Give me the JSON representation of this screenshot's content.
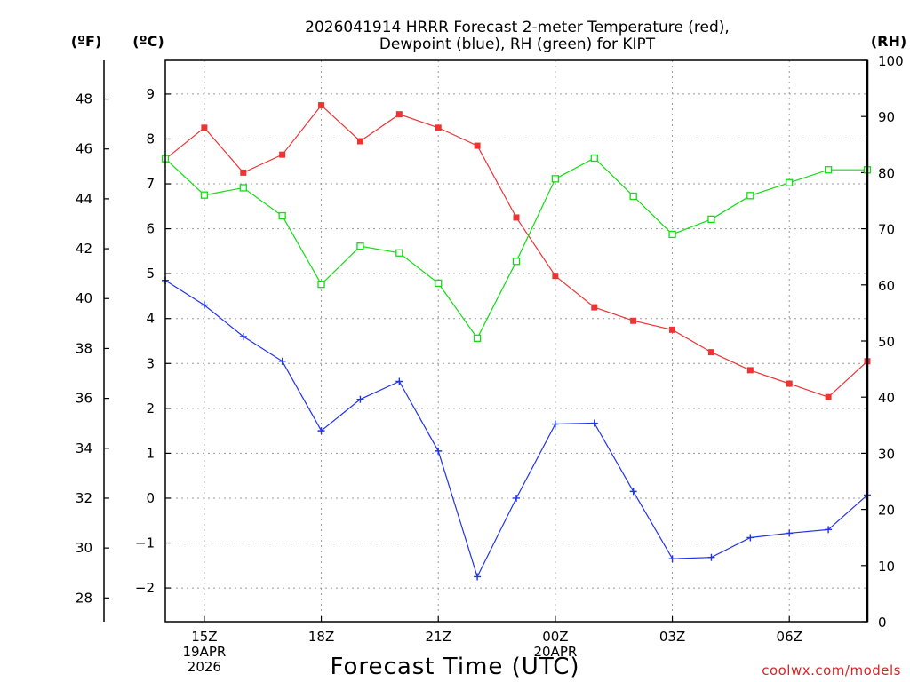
{
  "title": {
    "line1": "2026041914 HRRR Forecast 2-meter Temperature (red),",
    "line2": "Dewpoint (blue), RH (green) for KIPT"
  },
  "units": {
    "fahrenheit": "(ºF)",
    "celsius": "(ºC)",
    "rh": "(RH)"
  },
  "credit": "coolwx.com/models",
  "chart_data": {
    "type": "line",
    "title": "2026041914 HRRR Forecast 2-meter Temperature (red), Dewpoint (blue), RH (green) for KIPT",
    "xlabel": "Forecast Time (UTC)",
    "x": [
      14,
      15,
      16,
      17,
      18,
      19,
      20,
      21,
      22,
      23,
      24,
      25,
      26,
      27,
      28,
      29,
      30,
      31,
      32
    ],
    "x_unit": "UTC hours since 19APR2026 00Z",
    "xlim": [
      14,
      32
    ],
    "xticks": [
      {
        "x": 15,
        "lines": [
          "15Z",
          "19APR",
          "2026"
        ]
      },
      {
        "x": 18,
        "lines": [
          "18Z"
        ]
      },
      {
        "x": 21,
        "lines": [
          "21Z"
        ]
      },
      {
        "x": 24,
        "lines": [
          "00Z",
          "20APR"
        ]
      },
      {
        "x": 27,
        "lines": [
          "03Z"
        ]
      },
      {
        "x": 30,
        "lines": [
          "06Z"
        ]
      }
    ],
    "left_axis_c": {
      "label": "(ºC)",
      "ylim": [
        -2.75,
        9.75
      ],
      "ticks": [
        9,
        8,
        7,
        6,
        5,
        4,
        3,
        2,
        1,
        0,
        -1,
        -2
      ]
    },
    "left_axis_f": {
      "label": "(ºF)",
      "ticks": [
        48,
        46,
        44,
        42,
        40,
        38,
        36,
        34,
        32,
        30,
        28
      ]
    },
    "right_axis_rh": {
      "label": "(RH)",
      "ylim": [
        0,
        100
      ],
      "ticks": [
        100,
        90,
        80,
        70,
        60,
        50,
        40,
        30,
        20,
        10,
        0
      ]
    },
    "grid": true,
    "series": [
      {
        "name": "Temperature",
        "unit": "C",
        "axis": "celsius",
        "color": "#ee3333",
        "marker": "filled-square",
        "values": [
          7.55,
          8.25,
          7.25,
          7.65,
          8.75,
          7.95,
          8.55,
          8.25,
          7.85,
          6.25,
          4.95,
          4.25,
          3.95,
          3.75,
          3.25,
          2.85,
          2.55,
          2.25,
          3.05
        ]
      },
      {
        "name": "Dewpoint",
        "unit": "C",
        "axis": "celsius",
        "color": "#2233ee",
        "marker": "plus",
        "values": [
          4.85,
          4.3,
          3.6,
          3.05,
          1.5,
          2.2,
          2.6,
          1.05,
          -1.75,
          0.0,
          1.65,
          1.67,
          0.15,
          -1.35,
          -1.32,
          -0.88,
          -0.78,
          -0.7,
          0.07
        ]
      },
      {
        "name": "RH",
        "unit": "%",
        "axis": "rh",
        "color": "#11dd11",
        "marker": "open-square",
        "values": [
          82.5,
          76.0,
          77.3,
          72.3,
          60.1,
          66.9,
          65.7,
          60.3,
          50.5,
          64.2,
          78.9,
          82.6,
          75.8,
          69.0,
          71.7,
          75.9,
          78.2,
          80.5,
          80.5
        ]
      }
    ]
  }
}
